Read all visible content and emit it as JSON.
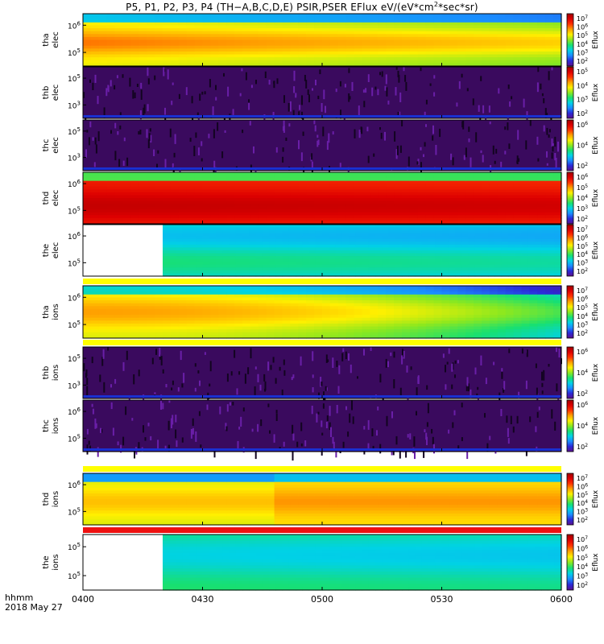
{
  "title_parts": {
    "pre": "P5, P1, P2, P3, P4 (TH−A,B,C,D,E) PSIR,PSER EFlux eV/(eV*cm",
    "sup": "2",
    "post": "*sec*sr)"
  },
  "footer": {
    "hhmm": "hhmm",
    "date": "2018 May 27"
  },
  "colors": {
    "colorbar": [
      "#5b0f8c",
      "#2a2ad8",
      "#1a8cff",
      "#00d2e6",
      "#18e070",
      "#8ee81e",
      "#fff000",
      "#ffa000",
      "#ff3300",
      "#dd0000",
      "#a00000"
    ]
  },
  "chart_data": {
    "type": "heatmap",
    "x_axis": {
      "range": [
        "0400",
        "0600"
      ],
      "ticks": [
        "0400",
        "0430",
        "0500",
        "0530",
        "0600"
      ]
    },
    "cbar_label": "Eflux",
    "panels": [
      {
        "row": 1,
        "label": [
          "thb",
          "elec"
        ],
        "yticks": [
          "10^5",
          "10^3"
        ],
        "cbar_ticks": [
          "10^5",
          "10^4",
          "10^3",
          "10^2"
        ],
        "note": "mostly near-noise purple"
      },
      {
        "row": 2,
        "label": [
          "thc",
          "elec"
        ],
        "yticks": [
          "10^5",
          "10^3"
        ],
        "cbar_ticks": [
          "10^6",
          "10^4",
          "10^2"
        ],
        "note": "mostly near-noise purple"
      },
      {
        "row": 3,
        "label": [
          "thd",
          "elec"
        ],
        "yticks": [
          "10^6",
          "10^5"
        ],
        "cbar_ticks": [
          "10^6",
          "10^5",
          "10^4",
          "10^3",
          "10^2"
        ],
        "note": "high flux red band"
      },
      {
        "row": 4,
        "label": [
          "the",
          "elec"
        ],
        "yticks": [
          "10^6",
          "10^5"
        ],
        "cbar_ticks": [
          "10^7",
          "10^6",
          "10^5",
          "10^4",
          "10^3",
          "10^2"
        ],
        "data_start": "0420",
        "note": "no data before ~0420"
      },
      {
        "row": 5,
        "label": [
          "tha",
          "ions"
        ],
        "yticks": [
          "10^6",
          "10^5"
        ],
        "cbar_ticks": [
          "10^7",
          "10^6",
          "10^5",
          "10^4",
          "10^3",
          "10^2"
        ],
        "note": "flux decreasing after 0500"
      },
      {
        "row": 6,
        "label": [
          "thb",
          "ions"
        ],
        "yticks": [
          "10^5",
          "10^3"
        ],
        "cbar_ticks": [
          "10^6",
          "10^4",
          "10^2"
        ],
        "note": "mostly near-noise purple"
      },
      {
        "row": 7,
        "label": [
          "thc",
          "ions"
        ],
        "yticks": [
          "10^6",
          "10^5"
        ],
        "cbar_ticks": [
          "10^6",
          "10^4",
          "10^2"
        ],
        "note": "mostly near-noise purple"
      },
      {
        "row": 8,
        "label": [
          "thd",
          "ions"
        ],
        "yticks": [
          "10^6",
          "10^5"
        ],
        "cbar_ticks": [
          "10^7",
          "10^6",
          "10^5",
          "10^4",
          "10^3",
          "10^2"
        ],
        "note": "green/yellow/orange"
      },
      {
        "row": 9,
        "label": [
          "the",
          "ions"
        ],
        "yticks": [
          "10^5",
          "10^5"
        ],
        "cbar_ticks": [
          "10^7",
          "10^6",
          "10^5",
          "10^4",
          "10^3",
          "10^2"
        ],
        "data_start": "0420",
        "note": "no data before ~0420"
      },
      {
        "row": 0,
        "label": [
          "tha",
          "elec"
        ],
        "yticks": [
          "10^6",
          "10^5"
        ],
        "cbar_ticks": [
          "10^7",
          "10^6",
          "10^5",
          "10^4",
          "10^3",
          "10^2"
        ],
        "note": "broad yellow/green band"
      }
    ]
  }
}
